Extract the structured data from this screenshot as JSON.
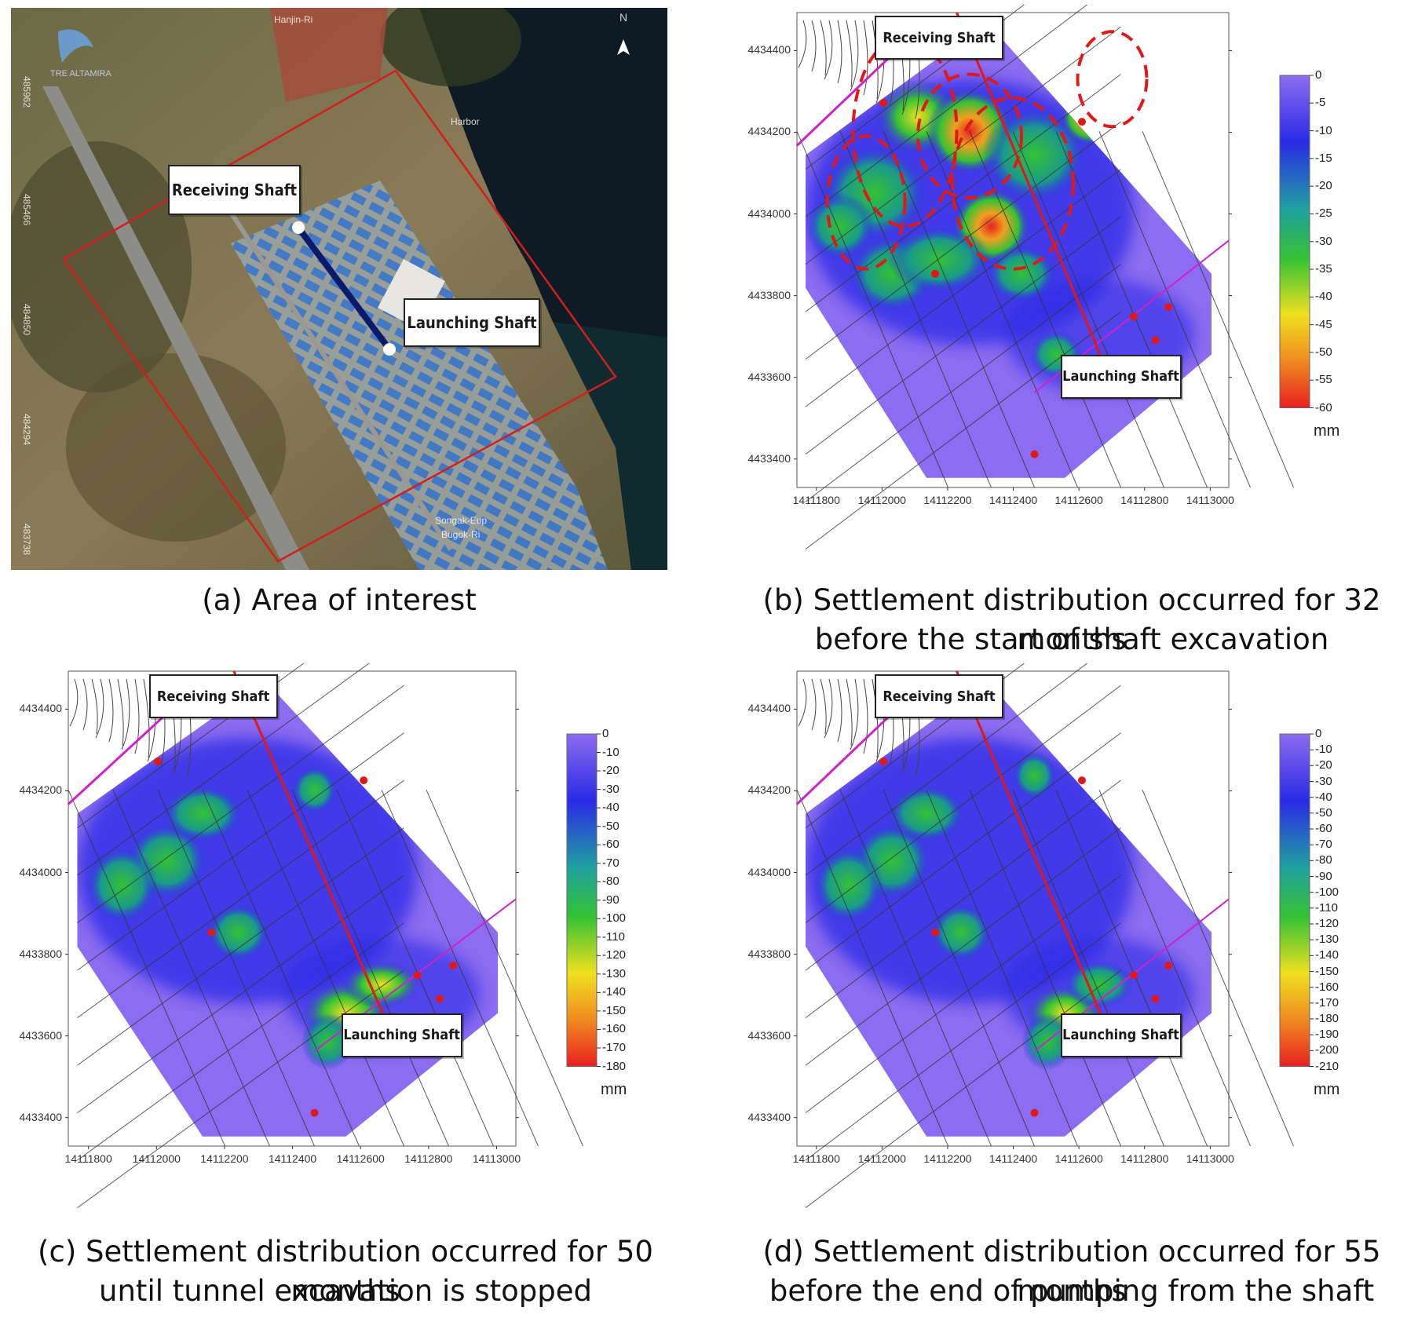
{
  "panels": {
    "a": {
      "caption": "(a) Area of interest",
      "receiving_label": "Receiving Shaft",
      "launching_label": "Launching Shaft",
      "north": "N",
      "logo_text": "TRE ALTAMIRA",
      "map_labels": [
        "Hanjin-Ri",
        "Songak-Eup",
        "Bugok-Ri",
        "Harbor"
      ],
      "side_ticks": [
        "485962",
        "485466",
        "484850",
        "484294",
        "483738"
      ]
    },
    "b": {
      "caption_line1": "(b) Settlement distribution occurred for 32 months",
      "caption_line2": "before the start of shaft excavation",
      "receiving_label": "Receiving Shaft",
      "launching_label": "Launching Shaft",
      "y_ticks": [
        "4434400",
        "4434200",
        "4434000",
        "4433800",
        "4433600",
        "4433400"
      ],
      "x_ticks": [
        "14111800",
        "14112000",
        "14112200",
        "14112400",
        "14112600",
        "14112800",
        "14113000"
      ],
      "colorbar": [
        "0",
        "-5",
        "-10",
        "-15",
        "-20",
        "-25",
        "-30",
        "-35",
        "-40",
        "-45",
        "-50",
        "-55",
        "-60"
      ],
      "unit": "mm"
    },
    "c": {
      "caption_line1": "(c) Settlement distribution occurred for 50 months",
      "caption_line2": "until tunnel excavation is stopped",
      "receiving_label": "Receiving Shaft",
      "launching_label": "Launching Shaft",
      "y_ticks": [
        "4434400",
        "4434200",
        "4434000",
        "4433800",
        "4433600",
        "4433400"
      ],
      "x_ticks": [
        "14111800",
        "14112000",
        "14112200",
        "14112400",
        "14112600",
        "14112800",
        "14113000"
      ],
      "colorbar": [
        "0",
        "-10",
        "-20",
        "-30",
        "-40",
        "-50",
        "-60",
        "-70",
        "-80",
        "-90",
        "-100",
        "-110",
        "-120",
        "-130",
        "-140",
        "-150",
        "-160",
        "-170",
        "-180"
      ],
      "unit": "mm"
    },
    "d": {
      "caption_line1": "(d) Settlement distribution occurred for 55 months",
      "caption_line2": "before the end of pumping from the shaft",
      "receiving_label": "Receiving Shaft",
      "launching_label": "Launching Shaft",
      "y_ticks": [
        "4434400",
        "4434200",
        "4434000",
        "4433800",
        "4433600",
        "4433400"
      ],
      "x_ticks": [
        "14111800",
        "14112000",
        "14112200",
        "14112400",
        "14112600",
        "14112800",
        "14113000"
      ],
      "colorbar": [
        "0",
        "-10",
        "-20",
        "-30",
        "-40",
        "-50",
        "-60",
        "-70",
        "-80",
        "-90",
        "-100",
        "-110",
        "-120",
        "-130",
        "-140",
        "-150",
        "-160",
        "-170",
        "-180",
        "-190",
        "-200",
        "-210"
      ],
      "unit": "mm"
    }
  },
  "colors": {
    "settlement_low": "#8c6cf0",
    "settlement_mid": "#2a2ae6",
    "settlement_green": "#33c233",
    "settlement_yellow": "#f0e020",
    "settlement_high": "#e82020",
    "aoi_outline": "#d21e1e",
    "tunnel_line": "#0c1a6e"
  }
}
